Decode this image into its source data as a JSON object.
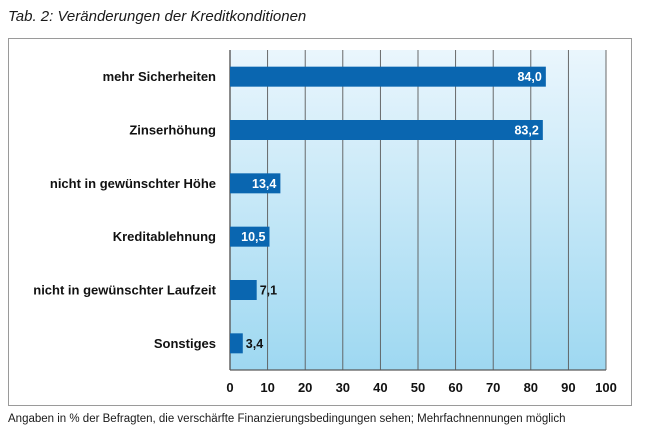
{
  "title": "Tab. 2: Veränderungen der Kreditkonditionen",
  "footnote": "Angaben in % der Befragten, die verschärfte Finanzierungsbedingungen sehen; Mehrfachnennungen möglich",
  "colors": {
    "bar": "#0a66b0",
    "plot_top": "#eaf6fd",
    "plot_bottom": "#9ed8f1",
    "grid": "#5a5a5a",
    "label_inside": "#ffffff",
    "label_outside": "#111111"
  },
  "chart_data": {
    "type": "bar",
    "orientation": "horizontal",
    "categories": [
      "mehr Sicherheiten",
      "Zinserhöhung",
      "nicht in gewünschter Höhe",
      "Kreditablehnung",
      "nicht in gewünschter Laufzeit",
      "Sonstiges"
    ],
    "values": [
      84.0,
      83.2,
      13.4,
      10.5,
      7.1,
      3.4
    ],
    "value_labels": [
      "84,0",
      "83,2",
      "13,4",
      "10,5",
      "7,1",
      "3,4"
    ],
    "xlim": [
      0,
      100
    ],
    "xticks": [
      0,
      10,
      20,
      30,
      40,
      50,
      60,
      70,
      80,
      90,
      100
    ],
    "grid": true,
    "xlabel": "",
    "ylabel": ""
  }
}
